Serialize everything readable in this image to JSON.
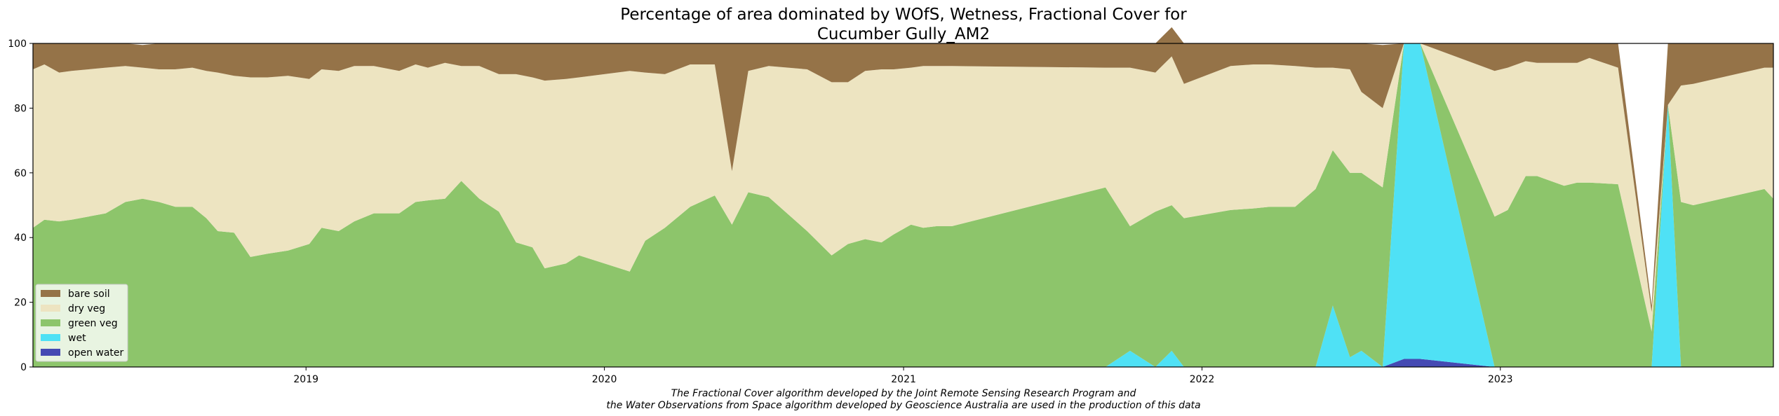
{
  "chart_data": {
    "type": "area",
    "stacked": true,
    "title": "Percentage of area dominated by WOfS, Wetness, Fractional Cover for",
    "subtitle": "Cucumber Gully_AM2",
    "xlabel": "",
    "ylabel": "",
    "ylim": [
      0,
      100
    ],
    "xlim": [
      "2018-02-01",
      "2023-12-01"
    ],
    "x_ticks": [
      "2019",
      "2020",
      "2021",
      "2022",
      "2023"
    ],
    "y_ticks": [
      "0",
      "20",
      "40",
      "60",
      "80",
      "100"
    ],
    "legend_position": "lower-left",
    "grid": false,
    "x": [
      "2018-02-01",
      "2018-02-15",
      "2018-03-05",
      "2018-03-20",
      "2018-04-10",
      "2018-05-01",
      "2018-05-25",
      "2018-06-15",
      "2018-07-05",
      "2018-07-25",
      "2018-08-15",
      "2018-09-01",
      "2018-09-15",
      "2018-10-05",
      "2018-10-25",
      "2018-11-15",
      "2018-12-10",
      "2019-01-05",
      "2019-01-20",
      "2019-02-10",
      "2019-03-01",
      "2019-03-25",
      "2019-04-25",
      "2019-05-15",
      "2019-05-30",
      "2019-06-20",
      "2019-07-10",
      "2019-08-01",
      "2019-08-25",
      "2019-09-15",
      "2019-10-05",
      "2019-10-20",
      "2019-11-15",
      "2019-12-01",
      "2020-02-01",
      "2020-02-20",
      "2020-03-15",
      "2020-04-15",
      "2020-05-15",
      "2020-06-05",
      "2020-06-25",
      "2020-07-20",
      "2020-09-05",
      "2020-10-05",
      "2020-10-25",
      "2020-11-15",
      "2020-12-05",
      "2020-12-20",
      "2021-01-10",
      "2021-01-25",
      "2021-02-10",
      "2021-03-01",
      "2021-09-05",
      "2021-10-05",
      "2021-11-05",
      "2021-11-25",
      "2021-12-10",
      "2022-02-05",
      "2022-03-05",
      "2022-03-25",
      "2022-04-25",
      "2022-05-20",
      "2022-06-10",
      "2022-07-01",
      "2022-07-15",
      "2022-08-10",
      "2022-09-05",
      "2022-09-25",
      "2022-12-25",
      "2023-01-10",
      "2023-02-01",
      "2023-02-15",
      "2023-03-20",
      "2023-04-05",
      "2023-04-20",
      "2023-05-25",
      "2023-07-05",
      "2023-07-25",
      "2023-08-10",
      "2023-08-25",
      "2023-11-20",
      "2023-12-01"
    ],
    "series": [
      {
        "name": "open water",
        "color": "#454ab3",
        "values": [
          0,
          0,
          0,
          0,
          0,
          0,
          0,
          0,
          0,
          0,
          0,
          0,
          0,
          0,
          0,
          0,
          0,
          0,
          0,
          0,
          0,
          0,
          0,
          0,
          0,
          0,
          0,
          0,
          0,
          0,
          0,
          0,
          0,
          0,
          0,
          0,
          0,
          0,
          0,
          0,
          0,
          0,
          0,
          0,
          0,
          0,
          0,
          0,
          0,
          0,
          0,
          0,
          0,
          0,
          0,
          0,
          0,
          0,
          0,
          0,
          0,
          0,
          0,
          0,
          0,
          0,
          2.5,
          2.5,
          0,
          0,
          0,
          0,
          0,
          0,
          0,
          0,
          0,
          0,
          0,
          0,
          0,
          0
        ]
      },
      {
        "name": "wet",
        "color": "#4fe1f5",
        "values": [
          0,
          0,
          0,
          0,
          0,
          0,
          0,
          0,
          0,
          0,
          0,
          0,
          0,
          0,
          0,
          0,
          0,
          0,
          0,
          0,
          0,
          0,
          0,
          0,
          0,
          0,
          0,
          0,
          0,
          0,
          0,
          0,
          0,
          0,
          0,
          0,
          0,
          0,
          0,
          0,
          0,
          0,
          0,
          0,
          0,
          0,
          0,
          0,
          0,
          0,
          0,
          0,
          0,
          5,
          0,
          5,
          0,
          0,
          0,
          0,
          0,
          0,
          19,
          3,
          5,
          0,
          97.5,
          97.5,
          0,
          0,
          0,
          0,
          0,
          0,
          0,
          0,
          0,
          81,
          0,
          0,
          0,
          0
        ]
      },
      {
        "name": "green veg",
        "color": "#8dc56b",
        "values": [
          43,
          45.5,
          45,
          45.5,
          46.5,
          47.5,
          51,
          52,
          51,
          49.5,
          49.5,
          46,
          42,
          41.5,
          34,
          35,
          36,
          38,
          43,
          42,
          45,
          47.5,
          47.5,
          51,
          51.5,
          52,
          57.5,
          52,
          48,
          38.5,
          37,
          30.5,
          32,
          34.5,
          29.5,
          39,
          43,
          49.5,
          53,
          44,
          54,
          52.5,
          42,
          34.5,
          38,
          39.5,
          38.5,
          41,
          44,
          43,
          43.5,
          43.5,
          55.5,
          38.5,
          48,
          45,
          46,
          48.5,
          49,
          49.5,
          49.5,
          55,
          48,
          57,
          55,
          55.5,
          0,
          0,
          46.5,
          48.5,
          59,
          59,
          56,
          57,
          57,
          56.5,
          11,
          0,
          51,
          50,
          55,
          52
        ]
      },
      {
        "name": "dry veg",
        "color": "#ede4c1",
        "values": [
          49,
          48,
          46,
          46,
          45.5,
          45,
          42,
          40.5,
          41,
          42.5,
          43,
          45.5,
          49,
          48.5,
          55.5,
          54.5,
          54,
          51,
          49,
          49.5,
          48,
          45.5,
          44,
          42.5,
          41,
          42,
          35.5,
          41,
          42.5,
          52,
          52.5,
          58,
          57,
          55,
          62,
          52,
          47.5,
          44,
          40.5,
          16.5,
          37.5,
          40.5,
          50,
          53.5,
          50,
          52,
          53.5,
          51,
          48.5,
          50,
          49.5,
          49.5,
          37,
          49,
          43,
          46,
          41.5,
          44.5,
          44.5,
          44,
          43.5,
          37.5,
          25.5,
          32,
          25,
          24.5,
          0,
          0,
          45,
          44,
          35.5,
          35,
          38,
          37,
          38.5,
          36,
          6,
          0,
          36,
          37.5,
          37.5,
          40.5
        ]
      },
      {
        "name": "bare soil",
        "color": "#957348",
        "values": [
          8,
          6.5,
          9,
          8.5,
          8,
          7.5,
          7,
          7,
          8,
          8,
          7.5,
          8.5,
          9,
          10,
          10.5,
          10.5,
          10,
          11,
          8,
          8.5,
          7,
          7,
          8.5,
          6.5,
          7.5,
          6,
          7,
          7,
          9.5,
          9.5,
          10.5,
          11.5,
          11,
          10.5,
          8.5,
          9,
          9.5,
          6.5,
          6.5,
          39.5,
          8.5,
          7,
          8,
          12,
          12,
          8.5,
          8,
          8,
          7.5,
          7,
          7,
          7,
          7.5,
          7.5,
          9,
          9,
          12.5,
          7,
          6.5,
          6.5,
          7,
          7.5,
          7.5,
          8,
          15,
          19.5,
          0,
          0,
          8.5,
          7.5,
          5.5,
          6,
          6,
          6,
          4.5,
          7.5,
          2,
          19,
          13,
          12.5,
          7.5,
          7.5
        ]
      }
    ],
    "legend_order": [
      "bare soil",
      "dry veg",
      "green veg",
      "wet",
      "open water"
    ],
    "footnote": [
      "The Fractional Cover algorithm developed by the Joint Remote Sensing Research Program and",
      "the Water Observations from Space algorithm developed by Geoscience Australia are used in the production of this data"
    ]
  }
}
